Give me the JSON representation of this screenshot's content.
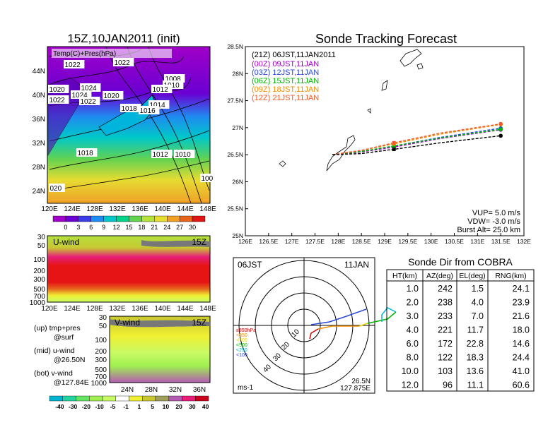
{
  "left_panel": {
    "title": "15Z,10JAN2011 (init)",
    "map_label": "Temp(C)+Pres(hPa)",
    "isobars": [
      "1022",
      "1022",
      "1020",
      "1024",
      "1024",
      "1022",
      "1022",
      "1020",
      "1008",
      "1010",
      "1012",
      "1014",
      "1016",
      "1018",
      "1018",
      "1012",
      "1010",
      "100",
      "020"
    ],
    "lat_ticks": [
      "44N",
      "40N",
      "36N",
      "32N",
      "28N",
      "24N"
    ],
    "lon_ticks": [
      "120E",
      "124E",
      "128E",
      "132E",
      "136E",
      "140E",
      "144E",
      "148E"
    ],
    "temp_scale": {
      "ticks": [
        "0",
        "3",
        "6",
        "9",
        "12",
        "15",
        "18",
        "21",
        "24",
        "27",
        "30"
      ],
      "colors": [
        "#a100c8",
        "#6a00d2",
        "#3c3ce6",
        "#1e8cf0",
        "#00c8c8",
        "#00d28c",
        "#64d250",
        "#b4e13c",
        "#e6dc32",
        "#f0a028",
        "#e6641e",
        "#e11414"
      ]
    }
  },
  "uwind_panel": {
    "label": "U-wind",
    "time": "15Z",
    "levels": [
      "30",
      "50",
      "100",
      "200",
      "300",
      "500",
      "700",
      "1000"
    ],
    "lon_ticks": [
      "120E",
      "124E",
      "128E",
      "132E",
      "136E",
      "140E",
      "144E",
      "148E"
    ]
  },
  "vwind_panel": {
    "label": "V-wind",
    "time": "15Z",
    "levels": [
      "30",
      "50",
      "100",
      "200",
      "300",
      "500",
      "700",
      "1000"
    ],
    "lat_ticks": [
      "24N",
      "28N",
      "32N",
      "36N"
    ],
    "scale_ticks": [
      "-40",
      "-30",
      "-20",
      "-10",
      "-5",
      "-1",
      "1",
      "5",
      "10",
      "20",
      "30",
      "40"
    ],
    "scale_colors": [
      "#00b4d2",
      "#28d2a0",
      "#64e664",
      "#a0f050",
      "#c8fa64",
      "#ffffff",
      "#f0f032",
      "#c8c832",
      "#a0a05a",
      "#b45ab4",
      "#e61e78",
      "#c8001e"
    ]
  },
  "legend_notes": [
    {
      "line1": "(up) tmp+pres",
      "line2": "@surf"
    },
    {
      "line1": "(mid) u-wind",
      "line2": "@26.50N"
    },
    {
      "line1": "(bot) v-wind",
      "line2": "@127.84E"
    }
  ],
  "tracking": {
    "title": "Sonde Tracking Forecast",
    "vup": "VUP= 5.0 m/s",
    "vdw": "VDW= -3.0 m/s",
    "burst": "Burst Alt= 25.0 km"
  },
  "polar": {
    "time_label": "06JST",
    "date_label": "11JAN",
    "unit": "ms-1",
    "lat": "26.5N",
    "lon": "127.875E",
    "ring_labels": [
      "10",
      "20",
      "30",
      "40"
    ],
    "level_legend": [
      {
        "label": "≥850hPa",
        "color": "#d20000"
      },
      {
        "label": "<850",
        "color": "#f08c00"
      },
      {
        "label": "<700",
        "color": "#e6dc00"
      },
      {
        "label": "<500",
        "color": "#00b400"
      },
      {
        "label": "<250",
        "color": "#00b4dc"
      },
      {
        "label": "<100",
        "color": "#2846dc"
      }
    ]
  },
  "cobra_table": {
    "title": "Sonde Dir from COBRA",
    "headers": [
      "HT(km)",
      "AZ(deg)",
      "EL(deg)",
      "RNG(km)"
    ],
    "rows": [
      [
        "1.0",
        "242",
        "1.5",
        "24.1"
      ],
      [
        "2.0",
        "238",
        "4.0",
        "23.9"
      ],
      [
        "3.0",
        "233",
        "7.0",
        "21.6"
      ],
      [
        "4.0",
        "221",
        "11.7",
        "18.0"
      ],
      [
        "6.0",
        "172",
        "22.8",
        "14.6"
      ],
      [
        "8.0",
        "122",
        "18.3",
        "24.4"
      ],
      [
        "10.0",
        "103",
        "13.6",
        "41.0"
      ],
      [
        "12.0",
        "96",
        "11.1",
        "60.6"
      ]
    ]
  },
  "chart_data": {
    "type": "line",
    "title": "Sonde Tracking Forecast",
    "xlabel": "",
    "ylabel": "",
    "xlim": [
      126,
      132
    ],
    "ylim": [
      25,
      28.5
    ],
    "x_ticks": [
      "126E",
      "126.5E",
      "127E",
      "127.5E",
      "128E",
      "128.5E",
      "129E",
      "129.5E",
      "130E",
      "130.5E",
      "131E",
      "131.5E",
      "132E"
    ],
    "y_ticks": [
      "25N",
      "25.5N",
      "26N",
      "26.5N",
      "27N",
      "27.5N",
      "28N",
      "28.5N"
    ],
    "legend_header": "(21Z) 06JST,11JAN2011",
    "grid": false,
    "series": [
      {
        "name": "(00Z) 09JST,11JAN",
        "color": "#a000c8",
        "x": [
          127.875,
          128.5,
          129.2,
          130.2,
          131.5
        ],
        "y": [
          26.5,
          26.55,
          26.64,
          26.8,
          26.96
        ]
      },
      {
        "name": "(03Z) 12JST,11JAN",
        "color": "#2846dc",
        "x": [
          127.875,
          128.5,
          129.2,
          130.2,
          131.5
        ],
        "y": [
          26.5,
          26.56,
          26.66,
          26.82,
          26.99
        ]
      },
      {
        "name": "(06Z) 15JST,11JAN",
        "color": "#00b400",
        "x": [
          127.875,
          128.5,
          129.2,
          130.2,
          131.5
        ],
        "y": [
          26.5,
          26.56,
          26.66,
          26.81,
          26.97
        ]
      },
      {
        "name": "(09Z) 18JST,11JAN",
        "color": "#f08c00",
        "x": [
          127.875,
          128.5,
          129.2,
          130.2,
          131.5
        ],
        "y": [
          26.5,
          26.58,
          26.7,
          26.88,
          27.06
        ]
      },
      {
        "name": "(12Z) 21JST,11JAN",
        "color": "#f05a28",
        "x": [
          127.875,
          128.5,
          129.2,
          130.2,
          131.5
        ],
        "y": [
          26.5,
          26.58,
          26.72,
          26.9,
          27.07
        ]
      },
      {
        "name": "(21Z) 06JST,11JAN2011",
        "color": "#000000",
        "x": [
          127.875,
          128.5,
          129.2,
          130.2,
          131.5
        ],
        "y": [
          26.5,
          26.52,
          26.6,
          26.72,
          26.85
        ]
      }
    ]
  }
}
